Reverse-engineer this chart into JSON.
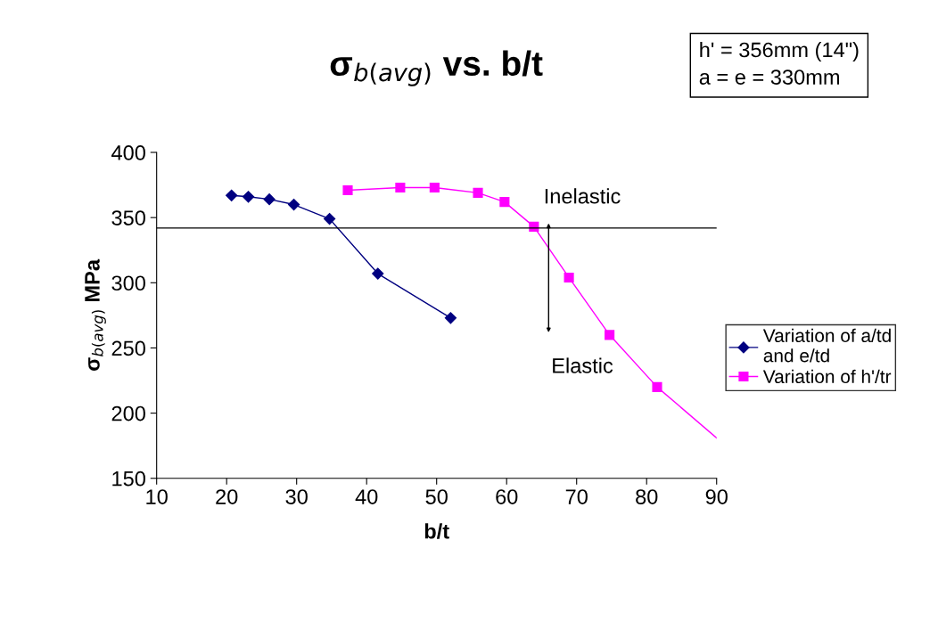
{
  "chart_data": {
    "type": "line",
    "title": "σ$_{b(avg)}$ vs. b/t",
    "xlabel": "b/t",
    "ylabel": "σ$_{b(avg)}$ MPa",
    "annotations": [
      "h' = 356mm (14\")\na = e = 330mm",
      "Inelastic",
      "Elastic"
    ],
    "series": [
      {
        "name": "Variation of a/td\nand e/td",
        "color": "#000080",
        "marker": "diamond",
        "x": [
          20.7,
          23.1,
          26.1,
          29.6,
          34.7,
          41.6,
          52.0
        ],
        "values": [
          367,
          366,
          364,
          360,
          349,
          307,
          273
        ]
      },
      {
        "name": "Variation of h'/tr",
        "color": "#ff00ff",
        "marker": "square",
        "x": [
          37.3,
          44.8,
          49.7,
          55.9,
          59.7,
          63.9,
          68.9,
          74.7,
          81.5
        ],
        "values": [
          371,
          373,
          373,
          369,
          362,
          343,
          304,
          260,
          220
        ]
      },
      {
        "color": "#ff00ff",
        "marker": "none",
        "x": [
          81.5,
          90
        ],
        "values": [
          220,
          181
        ]
      }
    ],
    "ref_lines": [
      {
        "axis": "y",
        "value": 342,
        "color": "#000000"
      }
    ],
    "xlim": [
      10,
      90
    ],
    "xticks": [
      10,
      20,
      30,
      40,
      50,
      60,
      70,
      80,
      90
    ],
    "ylim": [
      150,
      400
    ],
    "yticks": [
      150,
      200,
      250,
      300,
      350,
      400
    ],
    "grid": false,
    "legend": "right"
  }
}
